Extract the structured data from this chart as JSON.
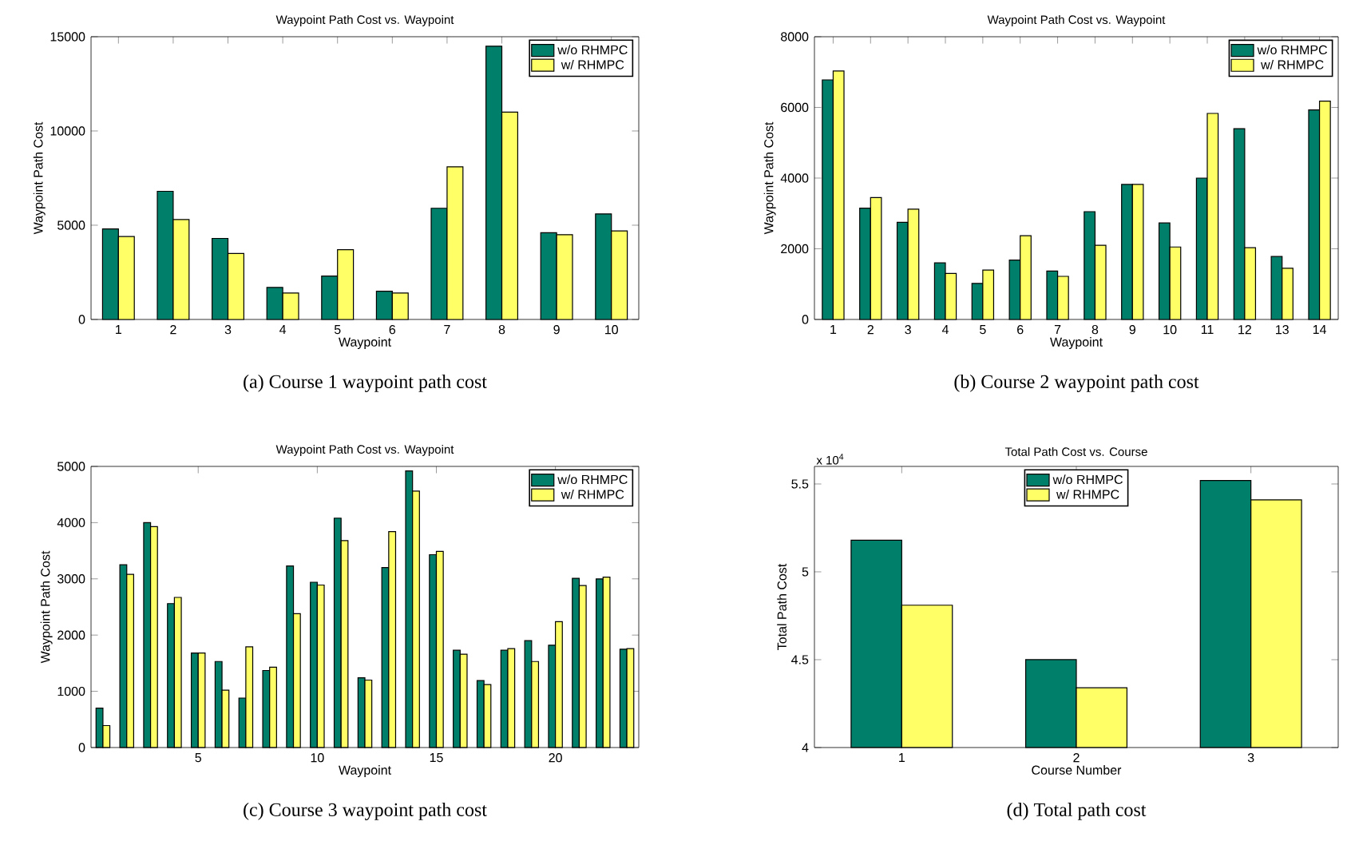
{
  "chart_data": [
    {
      "type": "bar",
      "title": "Waypoint Path Cost vs. Waypoint",
      "xlabel": "Waypoint",
      "ylabel": "Waypoint Path Cost",
      "categories": [
        "1",
        "2",
        "3",
        "4",
        "5",
        "6",
        "7",
        "8",
        "9",
        "10"
      ],
      "series": [
        {
          "name": "w/o RHMPC",
          "color": "#00806a",
          "values": [
            4800,
            6800,
            4300,
            1700,
            2300,
            1500,
            5900,
            14500,
            4600,
            5600
          ]
        },
        {
          "name": "w/ RHMPC",
          "color": "#ffff66",
          "values": [
            4400,
            5300,
            3500,
            1400,
            3700,
            1400,
            8100,
            11000,
            4500,
            4700
          ]
        }
      ],
      "ylim": [
        0,
        15000
      ],
      "yticks": [
        0,
        5000,
        10000,
        15000
      ],
      "legend": "top right",
      "annotations": [
        "(a)  Course 1 waypoint path cost"
      ]
    },
    {
      "type": "bar",
      "title": "Waypoint Path Cost vs. Waypoint",
      "xlabel": "Waypoint",
      "ylabel": "Waypoint Path Cost",
      "categories": [
        "1",
        "2",
        "3",
        "4",
        "5",
        "6",
        "7",
        "8",
        "9",
        "10",
        "11",
        "12",
        "13",
        "14"
      ],
      "series": [
        {
          "name": "w/o RHMPC",
          "color": "#00806a",
          "values": [
            6780,
            3150,
            2750,
            1600,
            1020,
            1680,
            1370,
            3050,
            3820,
            2730,
            4000,
            5400,
            1780,
            5930
          ]
        },
        {
          "name": "w/ RHMPC",
          "color": "#ffff66",
          "values": [
            7030,
            3450,
            3120,
            1300,
            1400,
            2370,
            1220,
            2100,
            3820,
            2050,
            5830,
            2030,
            1450,
            6180
          ]
        }
      ],
      "ylim": [
        0,
        8000
      ],
      "yticks": [
        0,
        2000,
        4000,
        6000,
        8000
      ],
      "legend": "top right",
      "annotations": [
        "(b)  Course 2 waypoint path cost"
      ]
    },
    {
      "type": "bar",
      "title": "Waypoint Path Cost vs. Waypoint",
      "xlabel": "Waypoint",
      "ylabel": "Waypoint Path Cost",
      "x": [
        1,
        2,
        3,
        4,
        5,
        6,
        7,
        8,
        9,
        10,
        11,
        12,
        13,
        14,
        15,
        16,
        17,
        18,
        19,
        20,
        21,
        22,
        23
      ],
      "series": [
        {
          "name": "w/o RHMPC",
          "color": "#00806a",
          "values": [
            700,
            3250,
            4000,
            2560,
            1680,
            1530,
            880,
            1370,
            3230,
            2940,
            4080,
            1240,
            3200,
            4920,
            3430,
            1730,
            1190,
            1730,
            1900,
            1820,
            3010,
            3000,
            1750
          ]
        },
        {
          "name": "w/ RHMPC",
          "color": "#ffff66",
          "values": [
            390,
            3080,
            3930,
            2670,
            1680,
            1020,
            1790,
            1430,
            2380,
            2890,
            3680,
            1200,
            3840,
            4560,
            3490,
            1660,
            1120,
            1760,
            1530,
            2240,
            2880,
            3030,
            1760
          ]
        }
      ],
      "xlim": [
        0.5,
        23.5
      ],
      "xticks": [
        5,
        10,
        15,
        20
      ],
      "ylim": [
        0,
        5000
      ],
      "yticks": [
        0,
        1000,
        2000,
        3000,
        4000,
        5000
      ],
      "legend": "top right",
      "annotations": [
        "(c)  Course 3 waypoint path cost"
      ]
    },
    {
      "type": "bar",
      "title": "Total Path Cost vs. Course",
      "xlabel": "Course Number",
      "ylabel": "Total Path Cost",
      "categories": [
        "1",
        "2",
        "3"
      ],
      "series": [
        {
          "name": "w/o RHMPC",
          "color": "#00806a",
          "values": [
            5.18,
            4.5,
            5.52
          ]
        },
        {
          "name": "w/ RHMPC",
          "color": "#ffff66",
          "values": [
            4.81,
            4.34,
            5.41
          ]
        }
      ],
      "ylim": [
        4,
        5.6
      ],
      "yticks": [
        4,
        4.5,
        5,
        5.5
      ],
      "legend": "top",
      "annotations": [
        "(d)  Total path cost",
        "x 10$^{4}$"
      ]
    }
  ]
}
